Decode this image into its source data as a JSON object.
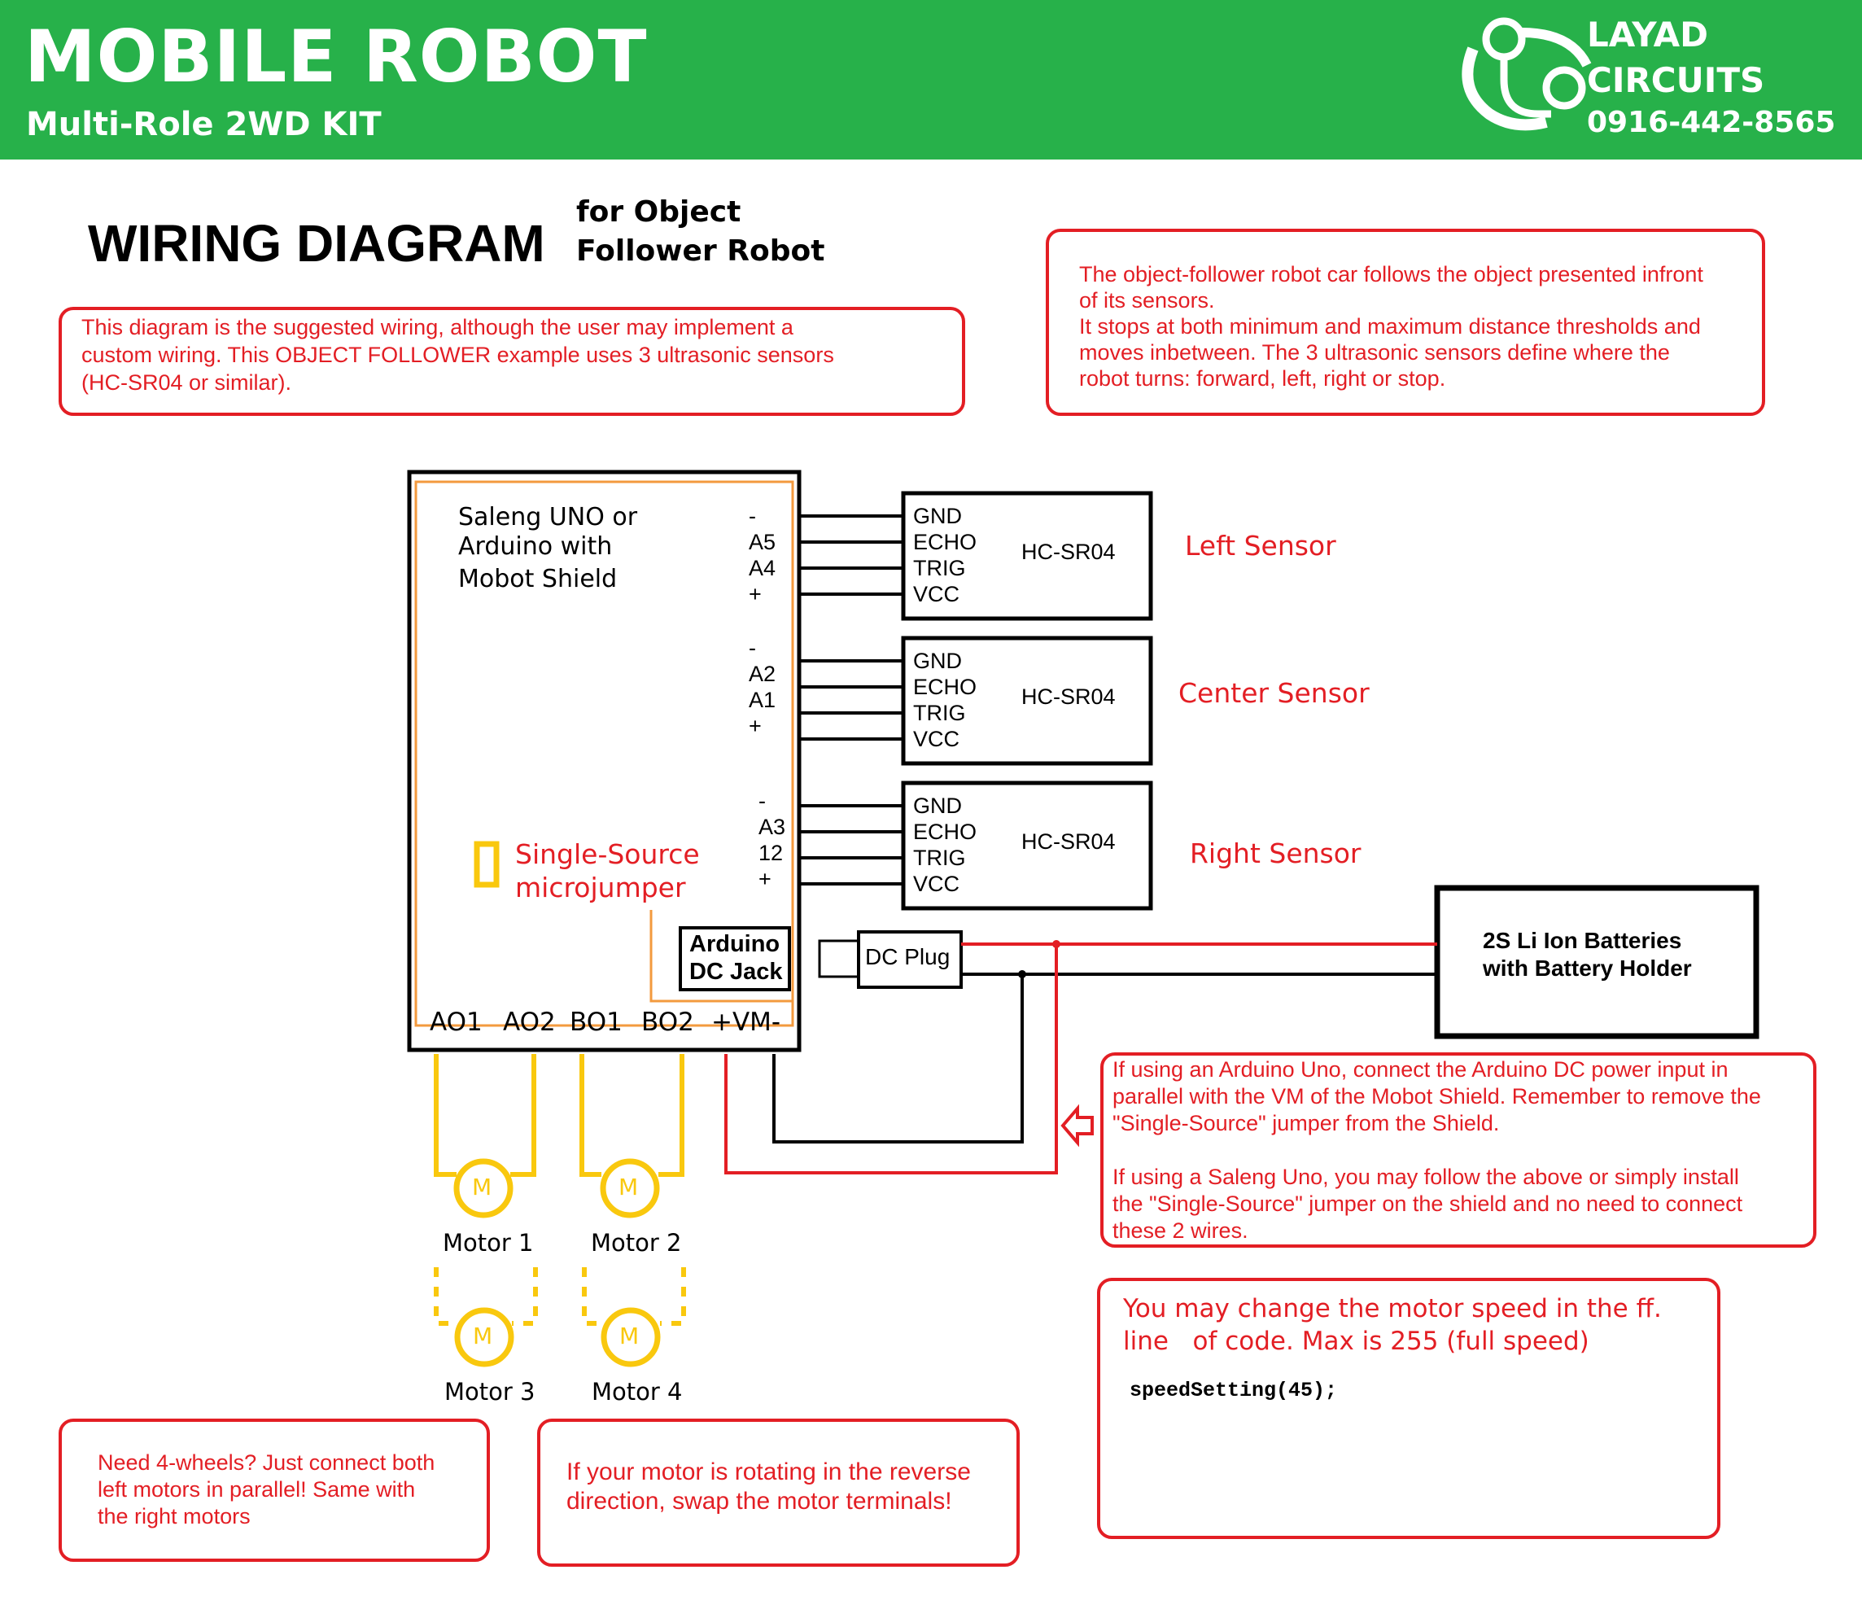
{
  "header": {
    "title": "MOBILE ROBOT",
    "subtitle": "Multi-Role 2WD KIT",
    "brand_line1": "LAYAD",
    "brand_line2": "CIRCUITS",
    "phone": "0916-442-8565"
  },
  "heading": {
    "title": "WIRING DIAGRAM",
    "subtitle_line1": "for Object",
    "subtitle_line2": "Follower Robot"
  },
  "notes": {
    "intro": "This diagram is the suggested wiring, although the user may implement a\ncustom wiring.  This OBJECT FOLLOWER example uses 3 ultrasonic sensors\n(HC-SR04 or similar).",
    "behavior": "The object-follower robot car follows the object presented infront\nof its sensors.\nIt stops at both minimum and maximum distance thresholds and\nmoves inbetween. The 3 ultrasonic sensors define where the\nrobot turns: forward, left, right or stop.",
    "power": "If using an Arduino Uno, connect the Arduino DC power input in\nparallel with the VM of the Mobot Shield. Remember to remove the\n\"Single-Source\" jumper from the Shield.\n\nIf using a Saleng Uno, you may follow the above or simply install\nthe \"Single-Source\" jumper  on the shield and no need to connect\nthese 2 wires.",
    "speed_line1": "You may change the motor speed in the ff.",
    "speed_line2": "line   of code. Max is 255 (full speed)",
    "speed_code": "speedSetting(45);",
    "four_wheels": "Need 4-wheels? Just connect both\nleft motors in parallel! Same with\nthe right motors",
    "reverse": "If your motor is rotating in the reverse\ndirection, swap the motor terminals!"
  },
  "board": {
    "name_line1": "Saleng UNO or",
    "name_line2": "Arduino with",
    "name_line3": "Mobot Shield",
    "jumper_line1": "Single-Source",
    "jumper_line2": "microjumper",
    "dc_jack_line1": "Arduino",
    "dc_jack_line2": "DC Jack",
    "bottom_pins": [
      "AO1",
      "AO2",
      "BO1",
      "BO2",
      "+VM-"
    ],
    "header1": [
      "-",
      "A5",
      "A4",
      "+"
    ],
    "header2": [
      "-",
      "A2",
      "A1",
      "+"
    ],
    "header3": [
      "-",
      "A3",
      "12",
      "+"
    ]
  },
  "sensors": [
    {
      "pins": [
        "GND",
        "ECHO",
        "TRIG",
        "VCC"
      ],
      "model": "HC-SR04",
      "label": "Left Sensor"
    },
    {
      "pins": [
        "GND",
        "ECHO",
        "TRIG",
        "VCC"
      ],
      "model": "HC-SR04",
      "label": "Center Sensor"
    },
    {
      "pins": [
        "GND",
        "ECHO",
        "TRIG",
        "VCC"
      ],
      "model": "HC-SR04",
      "label": "Right Sensor"
    }
  ],
  "power": {
    "dc_plug": "DC Plug",
    "battery_line1": "2S Li Ion Batteries",
    "battery_line2": "with Battery Holder"
  },
  "motors": {
    "symbol": "M",
    "labels": [
      "Motor 1",
      "Motor 2",
      "Motor 3",
      "Motor 4"
    ]
  },
  "colors": {
    "header_green": "#27b14a",
    "note_red": "#e31e24",
    "motor_yellow": "#f9c80e",
    "board_orange": "#f39a3e"
  }
}
